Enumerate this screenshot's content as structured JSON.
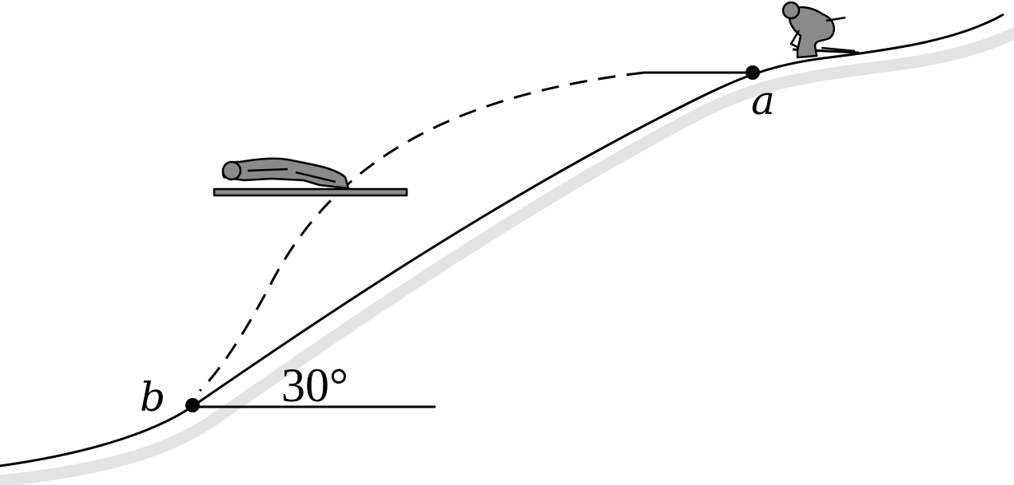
{
  "labels": {
    "point_a": "a",
    "point_b": "b",
    "angle": "30°"
  },
  "colors": {
    "line": "#000000",
    "shadow": "#e3e3e3",
    "figure_fill": "#8a8a8a",
    "background": "#ffffff"
  },
  "icons": {
    "skier_crouched": "crouched-ski-jumper-icon",
    "skier_flying": "flying-ski-jumper-icon"
  }
}
